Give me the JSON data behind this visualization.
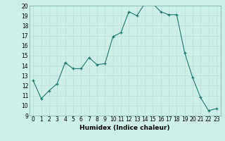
{
  "x": [
    0,
    1,
    2,
    3,
    4,
    5,
    6,
    7,
    8,
    9,
    10,
    11,
    12,
    13,
    14,
    15,
    16,
    17,
    18,
    19,
    20,
    21,
    22,
    23
  ],
  "y": [
    12.5,
    10.7,
    11.5,
    12.2,
    14.3,
    13.7,
    13.7,
    14.8,
    14.1,
    14.2,
    16.9,
    17.3,
    19.4,
    19.0,
    20.2,
    20.2,
    19.4,
    19.1,
    19.1,
    15.3,
    12.8,
    10.8,
    9.5,
    9.7
  ],
  "xlabel": "Humidex (Indice chaleur)",
  "ylim": [
    9,
    20
  ],
  "xlim": [
    -0.5,
    23.5
  ],
  "yticks": [
    9,
    10,
    11,
    12,
    13,
    14,
    15,
    16,
    17,
    18,
    19,
    20
  ],
  "xticks": [
    0,
    1,
    2,
    3,
    4,
    5,
    6,
    7,
    8,
    9,
    10,
    11,
    12,
    13,
    14,
    15,
    16,
    17,
    18,
    19,
    20,
    21,
    22,
    23
  ],
  "line_color": "#1a7a6e",
  "marker_color": "#1a7a6e",
  "bg_color": "#ceeee8",
  "grid_major_color": "#b8ddd8",
  "grid_minor_color": "#d4eeea",
  "label_fontsize": 6.5,
  "tick_fontsize": 5.5
}
